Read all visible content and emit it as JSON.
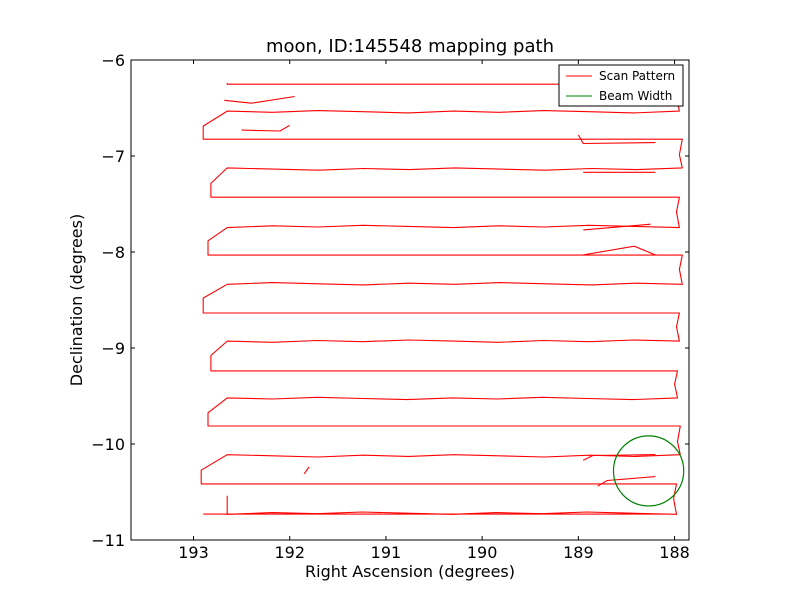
{
  "chart_data": {
    "type": "line",
    "title": "moon, ID:145548 mapping path",
    "xlabel": "Right Ascension (degrees)",
    "ylabel": "Declination (degrees)",
    "xlim": [
      193.65,
      187.85
    ],
    "ylim": [
      -11,
      -6
    ],
    "xticks": [
      193,
      192,
      191,
      190,
      189,
      188
    ],
    "yticks": [
      -6,
      -7,
      -8,
      -9,
      -10,
      -11
    ],
    "xtick_labels": [
      "193",
      "192",
      "191",
      "190",
      "189",
      "188"
    ],
    "ytick_labels": [
      "−6",
      "−7",
      "−8",
      "−9",
      "−10",
      "−11"
    ],
    "legend": {
      "position": "top-right",
      "entries": [
        {
          "label": "Scan Pattern",
          "color": "#ff0000"
        },
        {
          "label": "Beam Width",
          "color": "#008000"
        }
      ]
    },
    "scan": {
      "name": "Scan Pattern",
      "color": "#ff0000",
      "dec_start": -6.24,
      "dec_step": -0.2987,
      "row_count": 16,
      "left_turn_ra": [
        192.9,
        192.82,
        192.85,
        192.9,
        192.82,
        192.85,
        192.92,
        192.95,
        192.85,
        192.82,
        192.82,
        192.82,
        192.78
      ],
      "right_turn_ra": [
        187.95,
        187.92,
        187.95,
        187.92,
        187.95,
        187.97,
        187.94,
        187.98,
        187.96,
        187.97,
        187.95,
        187.97,
        187.93,
        187.99,
        187.96
      ],
      "start": [
        192.65,
        -6.24
      ],
      "end": [
        192.65,
        -10.54
      ],
      "extra_segments": [
        {
          "points": [
            [
              192.9,
              -10.73
            ],
            [
              188.1,
              -10.73
            ]
          ]
        },
        {
          "points": [
            [
              188.2,
              -8.03
            ],
            [
              188.42,
              -7.94
            ],
            [
              188.95,
              -8.03
            ]
          ]
        },
        {
          "points": [
            [
              188.25,
              -7.71
            ],
            [
              188.95,
              -7.77
            ]
          ]
        },
        {
          "points": [
            [
              188.2,
              -6.86
            ],
            [
              188.95,
              -6.87
            ],
            [
              189.0,
              -6.78
            ]
          ]
        },
        {
          "points": [
            [
              188.2,
              -7.17
            ],
            [
              188.95,
              -7.17
            ]
          ]
        },
        {
          "points": [
            [
              192.0,
              -6.68
            ],
            [
              192.1,
              -6.74
            ],
            [
              192.5,
              -6.73
            ]
          ]
        },
        {
          "points": [
            [
              191.95,
              -6.38
            ],
            [
              192.4,
              -6.45
            ],
            [
              192.68,
              -6.42
            ]
          ]
        },
        {
          "points": [
            [
              191.8,
              -10.24
            ],
            [
              191.85,
              -10.31
            ]
          ]
        },
        {
          "points": [
            [
              188.8,
              -10.44
            ],
            [
              188.7,
              -10.38
            ],
            [
              188.2,
              -10.34
            ]
          ]
        },
        {
          "points": [
            [
              188.95,
              -10.17
            ],
            [
              188.85,
              -10.12
            ],
            [
              188.2,
              -10.11
            ]
          ]
        }
      ]
    },
    "beam": {
      "name": "Beam Width",
      "color": "#008000",
      "center_ra": 188.27,
      "center_dec": -10.28,
      "radius_deg": 0.365
    }
  }
}
